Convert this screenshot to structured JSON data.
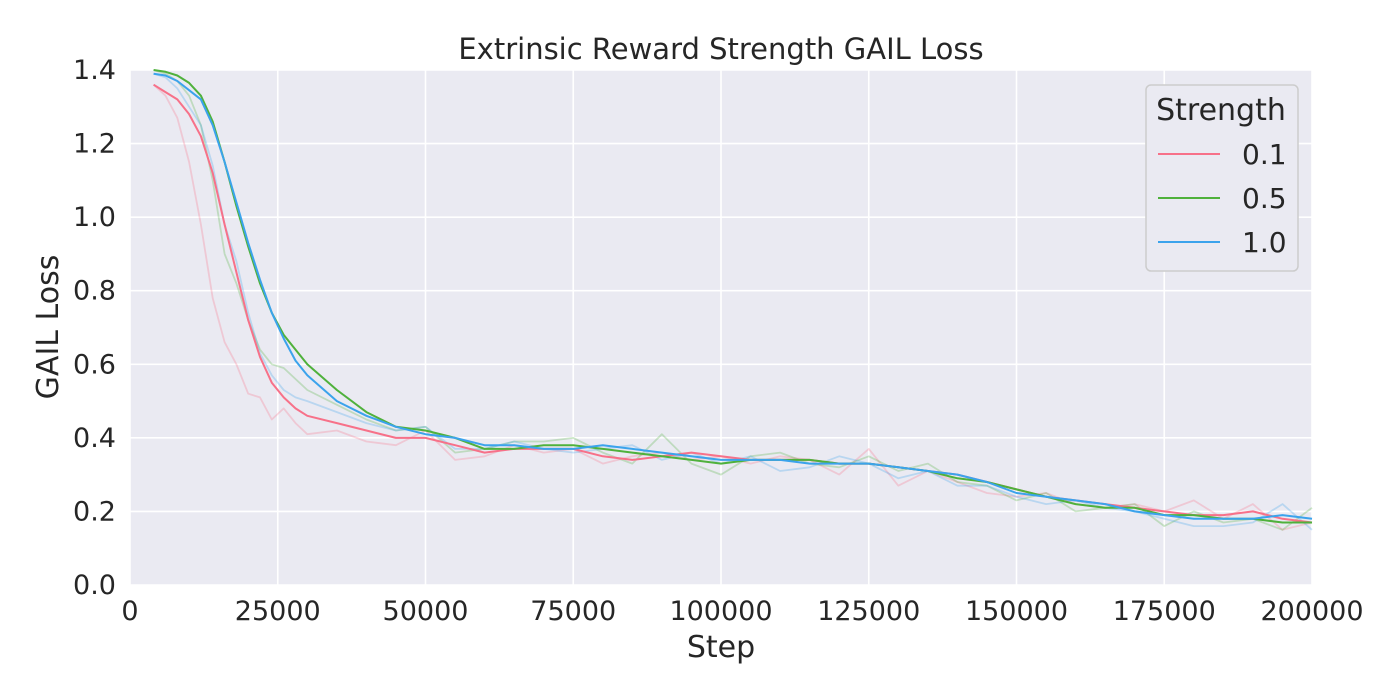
{
  "chart_data": {
    "type": "line",
    "title": "Extrinsic Reward Strength GAIL Loss",
    "xlabel": "Step",
    "ylabel": "GAIL Loss",
    "xlim": [
      0,
      200000
    ],
    "ylim": [
      0.0,
      1.4
    ],
    "xticks": [
      0,
      25000,
      50000,
      75000,
      100000,
      125000,
      150000,
      175000,
      200000
    ],
    "xtick_labels": [
      "0",
      "25000",
      "50000",
      "75000",
      "100000",
      "125000",
      "150000",
      "175000",
      "200000"
    ],
    "yticks": [
      0.0,
      0.2,
      0.4,
      0.6,
      0.8,
      1.0,
      1.2,
      1.4
    ],
    "ytick_labels": [
      "0.0",
      "0.2",
      "0.4",
      "0.6",
      "0.8",
      "1.0",
      "1.2",
      "1.4"
    ],
    "grid": true,
    "legend": {
      "title": "Strength",
      "placement": "top-right"
    },
    "colors": {
      "background": "#eaeaf2",
      "grid": "#ffffff",
      "text": "#262626"
    },
    "series": [
      {
        "name": "0.1",
        "color": "#f77189",
        "x": [
          4000,
          6000,
          8000,
          10000,
          12000,
          14000,
          16000,
          18000,
          20000,
          22000,
          24000,
          26000,
          28000,
          30000,
          35000,
          40000,
          45000,
          50000,
          55000,
          60000,
          65000,
          70000,
          75000,
          80000,
          85000,
          90000,
          95000,
          100000,
          105000,
          110000,
          115000,
          120000,
          125000,
          130000,
          135000,
          140000,
          145000,
          150000,
          155000,
          160000,
          165000,
          170000,
          175000,
          180000,
          185000,
          190000,
          195000,
          200000
        ],
        "y": [
          1.36,
          1.34,
          1.32,
          1.28,
          1.22,
          1.12,
          0.98,
          0.85,
          0.72,
          0.62,
          0.55,
          0.51,
          0.48,
          0.46,
          0.44,
          0.42,
          0.4,
          0.4,
          0.38,
          0.36,
          0.37,
          0.37,
          0.37,
          0.35,
          0.34,
          0.35,
          0.36,
          0.35,
          0.34,
          0.34,
          0.34,
          0.33,
          0.33,
          0.32,
          0.31,
          0.3,
          0.28,
          0.26,
          0.24,
          0.23,
          0.22,
          0.21,
          0.2,
          0.19,
          0.19,
          0.2,
          0.18,
          0.17
        ],
        "raw_y": [
          1.36,
          1.33,
          1.27,
          1.15,
          0.98,
          0.78,
          0.66,
          0.6,
          0.52,
          0.51,
          0.45,
          0.48,
          0.44,
          0.41,
          0.42,
          0.39,
          0.38,
          0.42,
          0.34,
          0.35,
          0.38,
          0.36,
          0.37,
          0.33,
          0.35,
          0.36,
          0.34,
          0.35,
          0.33,
          0.35,
          0.34,
          0.3,
          0.37,
          0.27,
          0.31,
          0.28,
          0.25,
          0.24,
          0.25,
          0.22,
          0.21,
          0.22,
          0.2,
          0.23,
          0.18,
          0.22,
          0.15,
          0.17
        ]
      },
      {
        "name": "0.5",
        "color": "#4fb13c",
        "x": [
          4000,
          6000,
          8000,
          10000,
          12000,
          14000,
          16000,
          18000,
          20000,
          22000,
          24000,
          26000,
          28000,
          30000,
          35000,
          40000,
          45000,
          50000,
          55000,
          60000,
          65000,
          70000,
          75000,
          80000,
          85000,
          90000,
          95000,
          100000,
          105000,
          110000,
          115000,
          120000,
          125000,
          130000,
          135000,
          140000,
          145000,
          150000,
          155000,
          160000,
          165000,
          170000,
          175000,
          180000,
          185000,
          190000,
          195000,
          200000
        ],
        "y": [
          1.4,
          1.395,
          1.385,
          1.365,
          1.33,
          1.26,
          1.15,
          1.03,
          0.92,
          0.82,
          0.74,
          0.68,
          0.64,
          0.6,
          0.53,
          0.47,
          0.43,
          0.42,
          0.4,
          0.37,
          0.37,
          0.38,
          0.38,
          0.37,
          0.36,
          0.35,
          0.34,
          0.33,
          0.34,
          0.34,
          0.34,
          0.33,
          0.33,
          0.32,
          0.31,
          0.29,
          0.28,
          0.26,
          0.24,
          0.22,
          0.21,
          0.21,
          0.19,
          0.19,
          0.18,
          0.18,
          0.17,
          0.17
        ],
        "raw_y": [
          1.4,
          1.39,
          1.37,
          1.33,
          1.25,
          1.1,
          0.9,
          0.82,
          0.72,
          0.64,
          0.6,
          0.59,
          0.56,
          0.53,
          0.49,
          0.45,
          0.42,
          0.43,
          0.36,
          0.37,
          0.39,
          0.39,
          0.4,
          0.36,
          0.33,
          0.41,
          0.33,
          0.3,
          0.35,
          0.36,
          0.33,
          0.32,
          0.35,
          0.31,
          0.33,
          0.28,
          0.27,
          0.23,
          0.25,
          0.2,
          0.21,
          0.22,
          0.16,
          0.2,
          0.17,
          0.18,
          0.15,
          0.21
        ]
      },
      {
        "name": "1.0",
        "color": "#3ba3ec",
        "x": [
          4000,
          6000,
          8000,
          10000,
          12000,
          14000,
          16000,
          18000,
          20000,
          22000,
          24000,
          26000,
          28000,
          30000,
          35000,
          40000,
          45000,
          50000,
          55000,
          60000,
          65000,
          70000,
          75000,
          80000,
          85000,
          90000,
          95000,
          100000,
          105000,
          110000,
          115000,
          120000,
          125000,
          130000,
          135000,
          140000,
          145000,
          150000,
          155000,
          160000,
          165000,
          170000,
          175000,
          180000,
          185000,
          190000,
          195000,
          200000
        ],
        "y": [
          1.39,
          1.385,
          1.37,
          1.345,
          1.32,
          1.25,
          1.15,
          1.04,
          0.93,
          0.83,
          0.74,
          0.67,
          0.61,
          0.57,
          0.5,
          0.46,
          0.43,
          0.41,
          0.4,
          0.38,
          0.38,
          0.37,
          0.37,
          0.38,
          0.37,
          0.36,
          0.35,
          0.34,
          0.34,
          0.34,
          0.33,
          0.33,
          0.33,
          0.32,
          0.31,
          0.3,
          0.28,
          0.25,
          0.24,
          0.23,
          0.22,
          0.2,
          0.19,
          0.18,
          0.18,
          0.18,
          0.19,
          0.18
        ],
        "raw_y": [
          1.39,
          1.38,
          1.35,
          1.3,
          1.25,
          1.14,
          0.98,
          0.88,
          0.74,
          0.63,
          0.57,
          0.53,
          0.51,
          0.5,
          0.47,
          0.44,
          0.42,
          0.43,
          0.37,
          0.37,
          0.39,
          0.37,
          0.36,
          0.37,
          0.38,
          0.34,
          0.36,
          0.33,
          0.35,
          0.31,
          0.32,
          0.35,
          0.33,
          0.29,
          0.31,
          0.27,
          0.27,
          0.24,
          0.22,
          0.23,
          0.21,
          0.2,
          0.18,
          0.16,
          0.16,
          0.17,
          0.22,
          0.15
        ]
      }
    ]
  }
}
